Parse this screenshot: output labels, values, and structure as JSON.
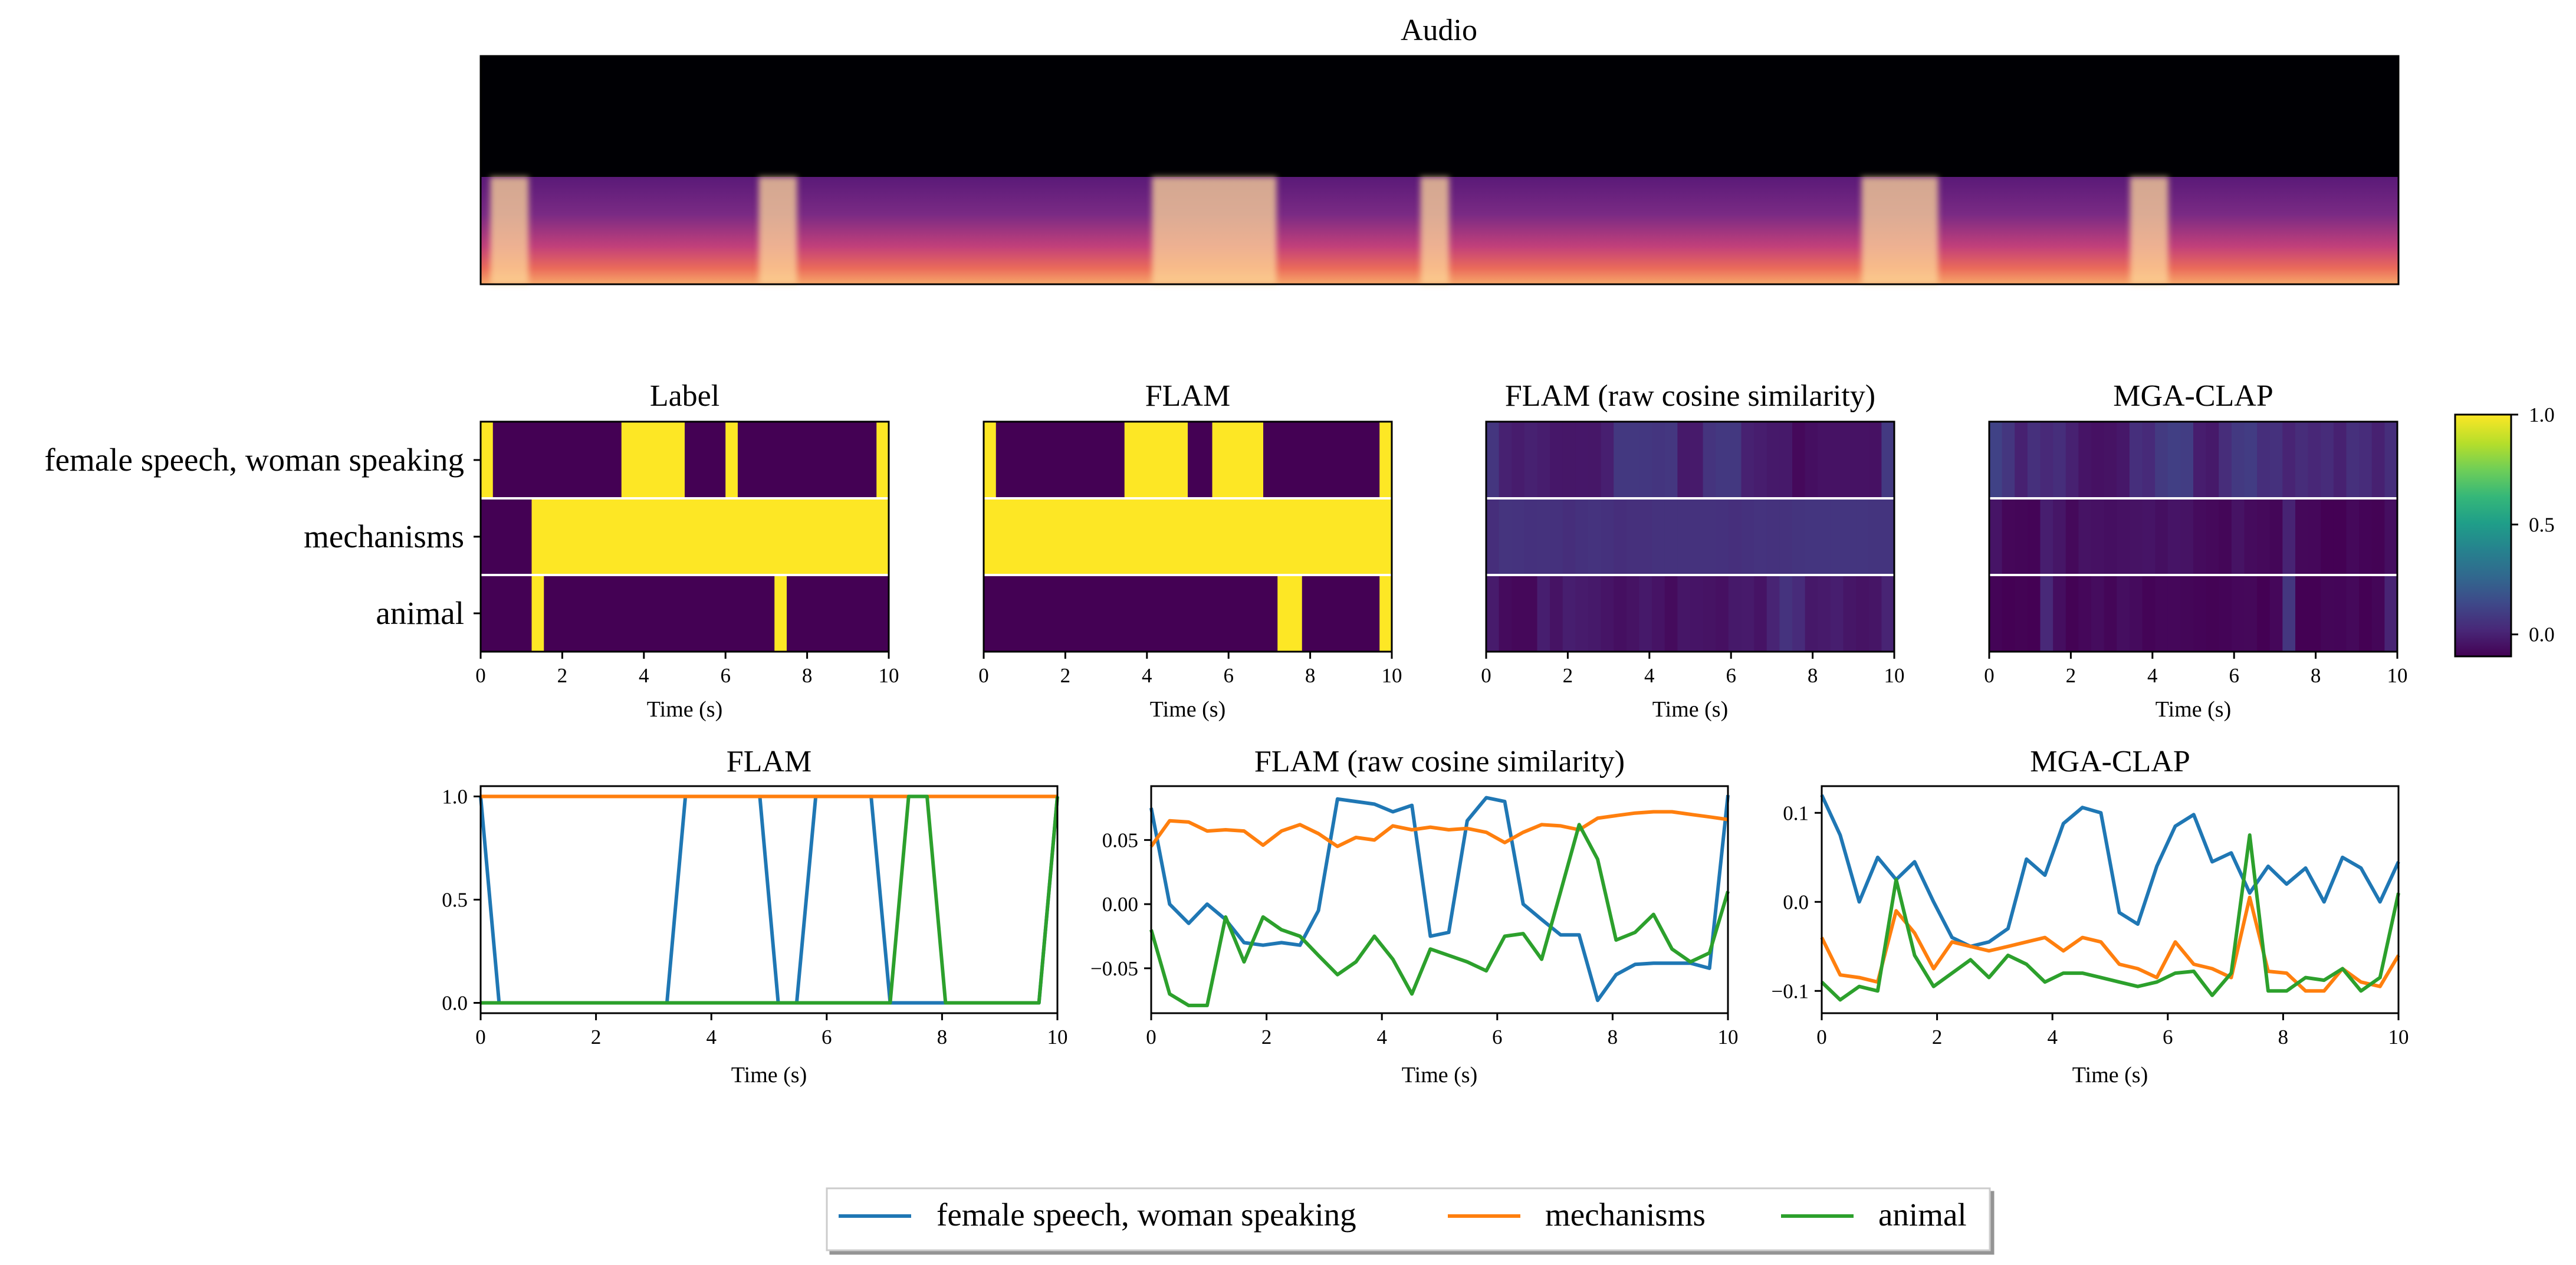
{
  "colors": {
    "female": "#1f77b4",
    "mechanisms": "#ff7f0e",
    "animal": "#2ca02c",
    "viridis": [
      "#440154",
      "#482878",
      "#3e4989",
      "#31688e",
      "#26828e",
      "#1f9e89",
      "#35b779",
      "#6ece58",
      "#b5de2b",
      "#fde725"
    ]
  },
  "spectrogram": {
    "title": "Audio"
  },
  "heatmaps": {
    "row_labels": [
      "female speech, woman speaking",
      "mechanisms",
      "animal"
    ],
    "xlabel": "Time (s)",
    "xticks": [
      "0",
      "2",
      "4",
      "6",
      "8",
      "10"
    ],
    "colorbar": {
      "ticks": [
        "1.0",
        "0.5",
        "0.0"
      ],
      "values": [
        1.0,
        0.5,
        0.0
      ],
      "range": [
        -0.1,
        1.0
      ]
    },
    "panels": [
      {
        "title": "Label",
        "mode": "binary",
        "rows": [
          [
            [
              0,
              0.3
            ],
            [
              3.45,
              5.0
            ],
            [
              6.0,
              6.3
            ],
            [
              9.7,
              10
            ]
          ],
          [
            [
              1.25,
              10
            ]
          ],
          [
            [
              1.25,
              1.55
            ],
            [
              7.2,
              7.5
            ]
          ]
        ]
      },
      {
        "title": "FLAM",
        "mode": "binary",
        "rows": [
          [
            [
              0,
              0.3
            ],
            [
              3.45,
              5.0
            ],
            [
              5.6,
              6.85
            ],
            [
              9.7,
              10
            ]
          ],
          [
            [
              0,
              10
            ]
          ],
          [
            [
              7.2,
              7.8
            ],
            [
              9.7,
              10
            ]
          ]
        ]
      },
      {
        "title": "FLAM (raw cosine similarity)",
        "mode": "continuous"
      },
      {
        "title": "MGA-CLAP",
        "mode": "continuous"
      }
    ]
  },
  "lineplots": {
    "xlabel": "Time (s)",
    "xticks": [
      "0",
      "2",
      "4",
      "6",
      "8",
      "10"
    ]
  },
  "legend": [
    "female speech, woman speaking",
    "mechanisms",
    "animal"
  ],
  "chart_data": [
    {
      "type": "heatmap",
      "title": "FLAM (raw cosine similarity)",
      "rows": [
        "female speech, woman speaking",
        "mechanisms",
        "animal"
      ],
      "x": [
        0.0,
        0.32,
        0.65,
        0.97,
        1.29,
        1.61,
        1.94,
        2.26,
        2.58,
        2.9,
        3.23,
        3.55,
        3.87,
        4.19,
        4.52,
        4.84,
        5.16,
        5.48,
        5.81,
        6.13,
        6.45,
        6.77,
        7.1,
        7.42,
        7.74,
        8.06,
        8.39,
        8.71,
        9.03,
        9.35,
        9.68,
        10.0
      ],
      "values": [
        [
          0.075,
          -0.0,
          -0.015,
          0.0,
          -0.012,
          -0.03,
          -0.032,
          -0.03,
          -0.032,
          -0.005,
          0.082,
          0.08,
          0.078,
          0.072,
          0.077,
          -0.025,
          -0.022,
          0.065,
          0.083,
          0.08,
          0.0,
          -0.012,
          -0.024,
          -0.024,
          -0.075,
          -0.055,
          -0.047,
          -0.046,
          -0.046,
          -0.046,
          -0.05,
          0.085
        ],
        [
          0.045,
          0.065,
          0.064,
          0.057,
          0.058,
          0.057,
          0.046,
          0.057,
          0.062,
          0.055,
          0.045,
          0.052,
          0.05,
          0.061,
          0.058,
          0.06,
          0.058,
          0.059,
          0.056,
          0.048,
          0.056,
          0.062,
          0.061,
          0.058,
          0.067,
          0.069,
          0.071,
          0.072,
          0.072,
          0.07,
          0.068,
          0.066
        ],
        [
          -0.02,
          -0.07,
          -0.079,
          -0.079,
          -0.01,
          -0.045,
          -0.01,
          -0.02,
          -0.025,
          -0.04,
          -0.055,
          -0.045,
          -0.025,
          -0.043,
          -0.07,
          -0.035,
          -0.04,
          -0.045,
          -0.052,
          -0.025,
          -0.023,
          -0.043,
          0.01,
          0.062,
          0.035,
          -0.028,
          -0.022,
          -0.008,
          -0.035,
          -0.045,
          -0.038,
          0.01
        ]
      ],
      "range": [
        -0.1,
        1.0
      ]
    },
    {
      "type": "heatmap",
      "title": "MGA-CLAP",
      "rows": [
        "female speech, woman speaking",
        "mechanisms",
        "animal"
      ],
      "x": [
        0.0,
        0.32,
        0.65,
        0.97,
        1.29,
        1.61,
        1.94,
        2.26,
        2.58,
        2.9,
        3.23,
        3.55,
        3.87,
        4.19,
        4.52,
        4.84,
        5.16,
        5.48,
        5.81,
        6.13,
        6.45,
        6.77,
        7.1,
        7.42,
        7.74,
        8.06,
        8.39,
        8.71,
        9.03,
        9.35,
        9.68,
        10.0
      ],
      "values": [
        [
          0.12,
          0.075,
          0.0,
          0.05,
          0.025,
          0.045,
          0.0,
          -0.04,
          -0.05,
          -0.045,
          -0.03,
          0.048,
          0.03,
          0.088,
          0.106,
          0.1,
          -0.012,
          -0.025,
          0.04,
          0.085,
          0.098,
          0.045,
          0.055,
          0.01,
          0.04,
          0.02,
          0.038,
          0.0,
          0.05,
          0.038,
          0.0,
          0.045
        ],
        [
          -0.04,
          -0.082,
          -0.085,
          -0.09,
          -0.01,
          -0.035,
          -0.075,
          -0.045,
          -0.05,
          -0.055,
          -0.05,
          -0.045,
          -0.04,
          -0.055,
          -0.04,
          -0.045,
          -0.07,
          -0.075,
          -0.085,
          -0.045,
          -0.07,
          -0.075,
          -0.085,
          0.005,
          -0.078,
          -0.08,
          -0.1,
          -0.1,
          -0.075,
          -0.09,
          -0.095,
          -0.06
        ],
        [
          -0.09,
          -0.11,
          -0.095,
          -0.1,
          0.025,
          -0.06,
          -0.095,
          -0.08,
          -0.065,
          -0.085,
          -0.06,
          -0.07,
          -0.09,
          -0.08,
          -0.08,
          -0.085,
          -0.09,
          -0.095,
          -0.09,
          -0.08,
          -0.078,
          -0.105,
          -0.08,
          0.075,
          -0.1,
          -0.1,
          -0.085,
          -0.088,
          -0.075,
          -0.1,
          -0.085,
          0.01
        ]
      ],
      "range": [
        -0.1,
        1.0
      ]
    },
    {
      "type": "line",
      "title": "FLAM",
      "xlabel": "Time (s)",
      "ylabel": "",
      "xlim": [
        0,
        10
      ],
      "ylim": [
        -0.05,
        1.05
      ],
      "yticks": [
        0.0,
        0.5,
        1.0
      ],
      "yticklabels": [
        "0.0",
        "0.5",
        "1.0"
      ],
      "x": [
        0.0,
        0.32,
        0.65,
        0.97,
        1.29,
        1.61,
        1.94,
        2.26,
        2.58,
        2.9,
        3.23,
        3.55,
        3.87,
        4.19,
        4.52,
        4.84,
        5.16,
        5.48,
        5.81,
        6.13,
        6.45,
        6.77,
        7.1,
        7.42,
        7.74,
        8.06,
        8.39,
        8.71,
        9.03,
        9.35,
        9.68,
        10.0
      ],
      "series": [
        {
          "name": "female speech, woman speaking",
          "values": [
            1,
            0,
            0,
            0,
            0,
            0,
            0,
            0,
            0,
            0,
            0,
            1,
            1,
            1,
            1,
            1,
            0,
            0,
            1,
            1,
            1,
            1,
            0,
            0,
            0,
            0,
            0,
            0,
            0,
            0,
            0,
            1
          ]
        },
        {
          "name": "mechanisms",
          "values": [
            1,
            1,
            1,
            1,
            1,
            1,
            1,
            1,
            1,
            1,
            1,
            1,
            1,
            1,
            1,
            1,
            1,
            1,
            1,
            1,
            1,
            1,
            1,
            1,
            1,
            1,
            1,
            1,
            1,
            1,
            1,
            1
          ]
        },
        {
          "name": "animal",
          "values": [
            0,
            0,
            0,
            0,
            0,
            0,
            0,
            0,
            0,
            0,
            0,
            0,
            0,
            0,
            0,
            0,
            0,
            0,
            0,
            0,
            0,
            0,
            0,
            1,
            1,
            0,
            0,
            0,
            0,
            0,
            0,
            1
          ]
        }
      ]
    },
    {
      "type": "line",
      "title": "FLAM (raw cosine similarity)",
      "xlabel": "Time (s)",
      "ylabel": "",
      "xlim": [
        0,
        10
      ],
      "ylim": [
        -0.085,
        0.092
      ],
      "yticks": [
        0.05,
        0.0,
        -0.05
      ],
      "yticklabels": [
        "0.05",
        "0.00",
        "−0.05"
      ],
      "x": [
        0.0,
        0.32,
        0.65,
        0.97,
        1.29,
        1.61,
        1.94,
        2.26,
        2.58,
        2.9,
        3.23,
        3.55,
        3.87,
        4.19,
        4.52,
        4.84,
        5.16,
        5.48,
        5.81,
        6.13,
        6.45,
        6.77,
        7.1,
        7.42,
        7.74,
        8.06,
        8.39,
        8.71,
        9.03,
        9.35,
        9.68,
        10.0
      ],
      "series": [
        {
          "name": "female speech, woman speaking",
          "values": [
            0.075,
            -0.0,
            -0.015,
            0.0,
            -0.012,
            -0.03,
            -0.032,
            -0.03,
            -0.032,
            -0.005,
            0.082,
            0.08,
            0.078,
            0.072,
            0.077,
            -0.025,
            -0.022,
            0.065,
            0.083,
            0.08,
            0.0,
            -0.012,
            -0.024,
            -0.024,
            -0.075,
            -0.055,
            -0.047,
            -0.046,
            -0.046,
            -0.046,
            -0.05,
            0.085
          ]
        },
        {
          "name": "mechanisms",
          "values": [
            0.045,
            0.065,
            0.064,
            0.057,
            0.058,
            0.057,
            0.046,
            0.057,
            0.062,
            0.055,
            0.045,
            0.052,
            0.05,
            0.061,
            0.058,
            0.06,
            0.058,
            0.059,
            0.056,
            0.048,
            0.056,
            0.062,
            0.061,
            0.058,
            0.067,
            0.069,
            0.071,
            0.072,
            0.072,
            0.07,
            0.068,
            0.066
          ]
        },
        {
          "name": "animal",
          "values": [
            -0.02,
            -0.07,
            -0.079,
            -0.079,
            -0.01,
            -0.045,
            -0.01,
            -0.02,
            -0.025,
            -0.04,
            -0.055,
            -0.045,
            -0.025,
            -0.043,
            -0.07,
            -0.035,
            -0.04,
            -0.045,
            -0.052,
            -0.025,
            -0.023,
            -0.043,
            0.01,
            0.062,
            0.035,
            -0.028,
            -0.022,
            -0.008,
            -0.035,
            -0.045,
            -0.038,
            0.01
          ]
        }
      ]
    },
    {
      "type": "line",
      "title": "MGA-CLAP",
      "xlabel": "Time (s)",
      "ylabel": "",
      "xlim": [
        0,
        10
      ],
      "ylim": [
        -0.125,
        0.13
      ],
      "yticks": [
        0.1,
        0.0,
        -0.1
      ],
      "yticklabels": [
        "0.1",
        "0.0",
        "−0.1"
      ],
      "x": [
        0.0,
        0.32,
        0.65,
        0.97,
        1.29,
        1.61,
        1.94,
        2.26,
        2.58,
        2.9,
        3.23,
        3.55,
        3.87,
        4.19,
        4.52,
        4.84,
        5.16,
        5.48,
        5.81,
        6.13,
        6.45,
        6.77,
        7.1,
        7.42,
        7.74,
        8.06,
        8.39,
        8.71,
        9.03,
        9.35,
        9.68,
        10.0
      ],
      "series": [
        {
          "name": "female speech, woman speaking",
          "values": [
            0.12,
            0.075,
            0.0,
            0.05,
            0.025,
            0.045,
            0.0,
            -0.04,
            -0.05,
            -0.045,
            -0.03,
            0.048,
            0.03,
            0.088,
            0.106,
            0.1,
            -0.012,
            -0.025,
            0.04,
            0.085,
            0.098,
            0.045,
            0.055,
            0.01,
            0.04,
            0.02,
            0.038,
            0.0,
            0.05,
            0.038,
            0.0,
            0.045
          ]
        },
        {
          "name": "mechanisms",
          "values": [
            -0.04,
            -0.082,
            -0.085,
            -0.09,
            -0.01,
            -0.035,
            -0.075,
            -0.045,
            -0.05,
            -0.055,
            -0.05,
            -0.045,
            -0.04,
            -0.055,
            -0.04,
            -0.045,
            -0.07,
            -0.075,
            -0.085,
            -0.045,
            -0.07,
            -0.075,
            -0.085,
            0.005,
            -0.078,
            -0.08,
            -0.1,
            -0.1,
            -0.075,
            -0.09,
            -0.095,
            -0.06
          ]
        },
        {
          "name": "animal",
          "values": [
            -0.09,
            -0.11,
            -0.095,
            -0.1,
            0.025,
            -0.06,
            -0.095,
            -0.08,
            -0.065,
            -0.085,
            -0.06,
            -0.07,
            -0.09,
            -0.08,
            -0.08,
            -0.085,
            -0.09,
            -0.095,
            -0.09,
            -0.08,
            -0.078,
            -0.105,
            -0.08,
            0.075,
            -0.1,
            -0.1,
            -0.085,
            -0.088,
            -0.075,
            -0.1,
            -0.085,
            0.01
          ]
        }
      ]
    }
  ]
}
